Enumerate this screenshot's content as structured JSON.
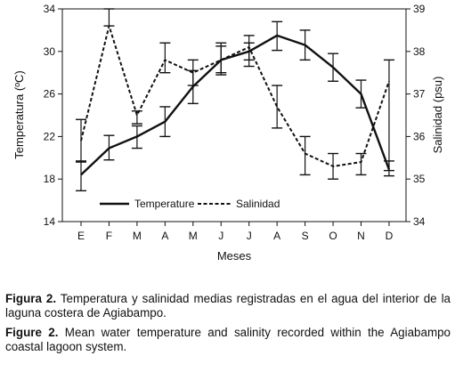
{
  "chart_data": {
    "type": "line",
    "categories": [
      "E",
      "F",
      "M",
      "A",
      "M",
      "J",
      "J",
      "A",
      "S",
      "O",
      "N",
      "D"
    ],
    "xlabel": "Meses",
    "y_left": {
      "label": "Temperatura (ºC)",
      "range": [
        14,
        34
      ],
      "ticks": [
        "14",
        "18",
        "22",
        "26",
        "30",
        "34"
      ]
    },
    "y_right": {
      "label": "Salinidad (psu)",
      "range": [
        34,
        39
      ],
      "ticks": [
        "34",
        "35",
        "36",
        "37",
        "38",
        "39"
      ]
    },
    "series": [
      {
        "name": "Temperature",
        "axis": "left",
        "style": "solid",
        "values": [
          18.4,
          20.9,
          22.0,
          23.4,
          26.7,
          29.2,
          30.0,
          31.5,
          30.6,
          28.5,
          26.0,
          18.9
        ],
        "err_low": [
          16.9,
          19.8,
          20.9,
          22.0,
          25.1,
          27.8,
          28.6,
          30.1,
          29.2,
          27.2,
          24.7,
          18.3
        ],
        "err_high": [
          19.7,
          22.1,
          23.0,
          24.8,
          28.2,
          30.5,
          31.5,
          32.8,
          32.0,
          29.8,
          27.3,
          19.7
        ]
      },
      {
        "name": "Salinidad",
        "axis": "right",
        "style": "dashed",
        "values": [
          35.9,
          38.6,
          36.5,
          37.8,
          37.5,
          37.8,
          38.1,
          36.7,
          35.6,
          35.3,
          35.4,
          37.3
        ],
        "err_low": [
          35.4,
          38.6,
          36.3,
          37.5,
          37.2,
          37.5,
          37.8,
          36.2,
          35.1,
          35.0,
          35.1,
          35.2
        ],
        "err_high": [
          36.4,
          39.0,
          36.6,
          38.2,
          37.8,
          38.2,
          38.2,
          37.2,
          36.0,
          35.6,
          35.6,
          37.8
        ]
      }
    ],
    "legend": {
      "placement": "bottom-center",
      "items": [
        "Temperature",
        "Salinidad"
      ]
    },
    "grid": false
  },
  "caption_es": {
    "prefix": "Figura 2.",
    "text": " Temperatura y salinidad medias registradas en el agua del interior de la laguna costera de Agiabampo."
  },
  "caption_en": {
    "prefix": "Figure 2.",
    "text": " Mean water temperature and salinity recorded within the Agiabampo coastal lagoon system."
  }
}
